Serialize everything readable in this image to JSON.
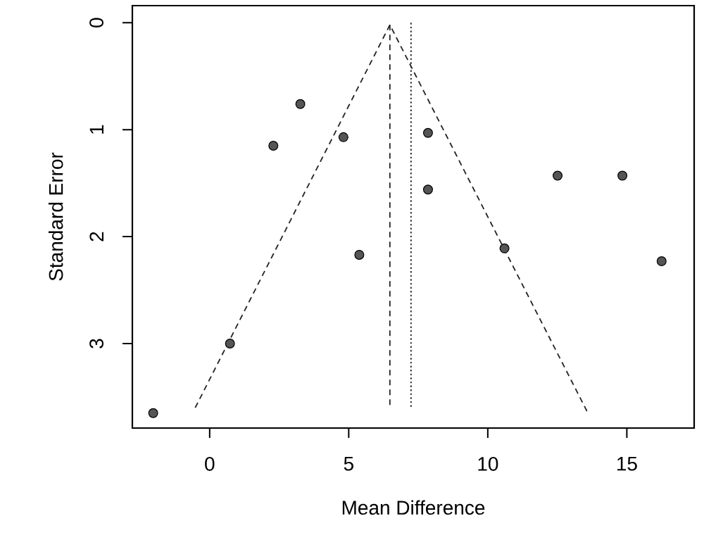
{
  "chart_data": {
    "type": "scatter",
    "xlabel": "Mean Difference",
    "ylabel": "Standard Error",
    "xlim": [
      -2.78,
      17.42
    ],
    "ylim": [
      3.79,
      -0.16
    ],
    "xticks": [
      0,
      5,
      10,
      15
    ],
    "yticks": [
      0,
      1,
      2,
      3
    ],
    "marker": "circle",
    "series": [
      {
        "color": "#555555",
        "x": [
          3.26,
          2.29,
          4.81,
          7.85,
          7.85,
          12.51,
          14.84,
          5.38,
          10.6,
          16.25,
          0.73,
          -2.03
        ],
        "values": [
          0.76,
          1.15,
          1.07,
          1.03,
          1.56,
          1.43,
          1.43,
          2.17,
          2.11,
          2.23,
          3.0,
          3.65
        ]
      },
      {
        "type": "line",
        "marker": "none",
        "color": "#222222",
        "line_style": "dashed",
        "x": [
          -0.52,
          6.48,
          13.6
        ],
        "values": [
          3.6,
          0.02,
          3.65
        ]
      },
      {
        "type": "line",
        "marker": "none",
        "color": "#222222",
        "line_style": "dashed",
        "x": [
          6.48,
          6.48
        ],
        "values": [
          0.02,
          3.6
        ]
      },
      {
        "type": "line",
        "marker": "none",
        "color": "#222222",
        "line_style": "dotted",
        "x": [
          7.24,
          7.24
        ],
        "values": [
          0.0,
          3.6
        ]
      }
    ]
  }
}
